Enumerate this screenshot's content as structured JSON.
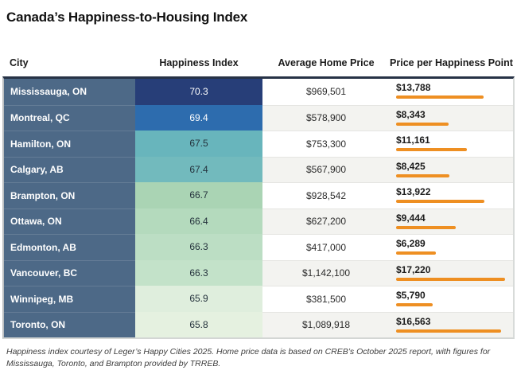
{
  "title": "Canada’s Happiness-to-Housing Index",
  "table": {
    "columns": [
      "City",
      "Happiness Index",
      "Average Home Price",
      "Price per Happiness Point"
    ],
    "ppp_max": 17220,
    "bar_color": "#ee8f22",
    "city_column_color": "#4d6987",
    "rows": [
      {
        "city": "Mississauga, ON",
        "happiness": "70.3",
        "avg_price": "$969,501",
        "price_per_point": "$13,788",
        "ppp_value": 13788,
        "cell_color": "#273e78",
        "cell_text": "#ffffff"
      },
      {
        "city": "Montreal, QC",
        "happiness": "69.4",
        "avg_price": "$578,900",
        "price_per_point": "$8,343",
        "ppp_value": 8343,
        "cell_color": "#2d6cae",
        "cell_text": "#ffffff"
      },
      {
        "city": "Hamilton, ON",
        "happiness": "67.5",
        "avg_price": "$753,300",
        "price_per_point": "$11,161",
        "ppp_value": 11161,
        "cell_color": "#68b5bc",
        "cell_text": "#24323c"
      },
      {
        "city": "Calgary, AB",
        "happiness": "67.4",
        "avg_price": "$567,900",
        "price_per_point": "$8,425",
        "ppp_value": 8425,
        "cell_color": "#72babd",
        "cell_text": "#24323c"
      },
      {
        "city": "Brampton, ON",
        "happiness": "66.7",
        "avg_price": "$928,542",
        "price_per_point": "$13,922",
        "ppp_value": 13922,
        "cell_color": "#aad4b4",
        "cell_text": "#24323c"
      },
      {
        "city": "Ottawa, ON",
        "happiness": "66.4",
        "avg_price": "$627,200",
        "price_per_point": "$9,444",
        "ppp_value": 9444,
        "cell_color": "#b4dabd",
        "cell_text": "#24323c"
      },
      {
        "city": "Edmonton, AB",
        "happiness": "66.3",
        "avg_price": "$417,000",
        "price_per_point": "$6,289",
        "ppp_value": 6289,
        "cell_color": "#bcdec4",
        "cell_text": "#24323c"
      },
      {
        "city": "Vancouver, BC",
        "happiness": "66.3",
        "avg_price": "$1,142,100",
        "price_per_point": "$17,220",
        "ppp_value": 17220,
        "cell_color": "#c3e2c9",
        "cell_text": "#24323c"
      },
      {
        "city": "Winnipeg, MB",
        "happiness": "65.9",
        "avg_price": "$381,500",
        "price_per_point": "$5,790",
        "ppp_value": 5790,
        "cell_color": "#dfeedd",
        "cell_text": "#24323c"
      },
      {
        "city": "Toronto, ON",
        "happiness": "65.8",
        "avg_price": "$1,089,918",
        "price_per_point": "$16,563",
        "ppp_value": 16563,
        "cell_color": "#e5f1e0",
        "cell_text": "#24323c"
      }
    ]
  },
  "footer": "Happiness index courtesy of Leger’s Happy Cities 2025. Home price data is based on CREB’s October 2025 report, with figures for Mississauga, Toronto, and Brampton provided by TRREB.",
  "chart_data": {
    "type": "table",
    "title": "Canada’s Happiness-to-Housing Index",
    "columns": [
      "City",
      "Happiness Index",
      "Average Home Price",
      "Price per Happiness Point"
    ],
    "cities": [
      "Mississauga, ON",
      "Montreal, QC",
      "Hamilton, ON",
      "Calgary, AB",
      "Brampton, ON",
      "Ottawa, ON",
      "Edmonton, AB",
      "Vancouver, BC",
      "Winnipeg, MB",
      "Toronto, ON"
    ],
    "happiness_index": [
      70.3,
      69.4,
      67.5,
      67.4,
      66.7,
      66.4,
      66.3,
      66.3,
      65.9,
      65.8
    ],
    "average_home_price": [
      969501,
      578900,
      753300,
      567900,
      928542,
      627200,
      417000,
      1142100,
      381500,
      1089918
    ],
    "price_per_happiness_point": [
      13788,
      8343,
      11161,
      8425,
      13922,
      9444,
      6289,
      17220,
      5790,
      16563
    ],
    "bar_axis_range": [
      0,
      17220
    ],
    "bar_color": "#ee8f22",
    "happiness_cell_colors": [
      "#273e78",
      "#2d6cae",
      "#68b5bc",
      "#72babd",
      "#aad4b4",
      "#b4dabd",
      "#bcdec4",
      "#c3e2c9",
      "#dfeedd",
      "#e5f1e0"
    ]
  }
}
